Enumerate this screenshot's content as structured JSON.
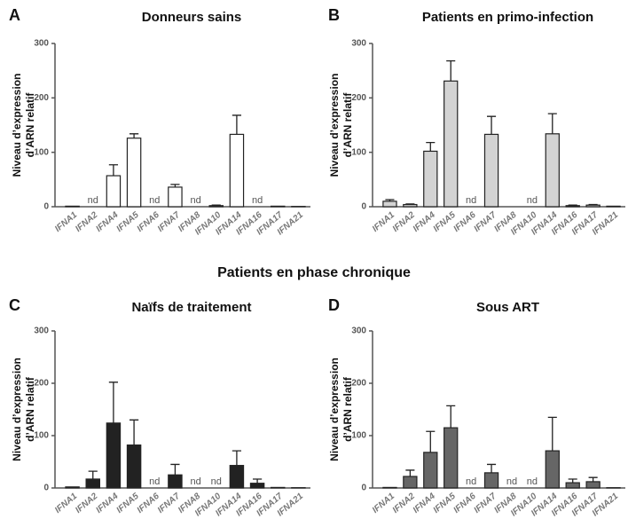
{
  "heading": "Patients en phase chronique",
  "chart_data": [
    {
      "type": "bar",
      "panel": "A",
      "title": "Donneurs sains",
      "ylabel": [
        "Niveau d’expression",
        "d’ARN relatif"
      ],
      "categories": [
        "IFNA1",
        "IFNA2",
        "IFNA4",
        "IFNA5",
        "IFNA6",
        "IFNA7",
        "IFNA8",
        "IFNA10",
        "IFNA14",
        "IFNA16",
        "IFNA17",
        "IFNA21"
      ],
      "values": [
        1,
        null,
        57,
        126,
        null,
        36,
        null,
        2,
        133,
        null,
        1,
        0.5
      ],
      "errors": [
        null,
        null,
        20,
        8,
        null,
        5,
        null,
        1,
        35,
        null,
        null,
        null
      ],
      "value_labels": [
        null,
        "nd",
        null,
        null,
        "nd",
        null,
        "nd",
        null,
        null,
        "nd",
        null,
        null
      ],
      "color": "#ffffff",
      "ylim": [
        0,
        300
      ],
      "yticks": [
        0,
        100,
        200,
        300
      ]
    },
    {
      "type": "bar",
      "panel": "B",
      "title": "Patients en primo-infection",
      "ylabel": [
        "Niveau d’expression",
        "d’ARN relatif"
      ],
      "categories": [
        "IFNA1",
        "IFNA2",
        "IFNA4",
        "IFNA5",
        "IFNA6",
        "IFNA7",
        "IFNA8",
        "IFNA10",
        "IFNA14",
        "IFNA16",
        "IFNA17",
        "IFNA21"
      ],
      "values": [
        10,
        4,
        102,
        231,
        null,
        133,
        0,
        null,
        134,
        2,
        3,
        1
      ],
      "errors": [
        3,
        1,
        16,
        37,
        null,
        33,
        null,
        null,
        37,
        1,
        1,
        null
      ],
      "value_labels": [
        null,
        null,
        null,
        null,
        "nd",
        null,
        null,
        "nd",
        null,
        null,
        null,
        null
      ],
      "color": "#d3d3d3",
      "ylim": [
        0,
        300
      ],
      "yticks": [
        0,
        100,
        200,
        300
      ]
    },
    {
      "type": "bar",
      "panel": "C",
      "title": "Naïfs de traitement",
      "ylabel": [
        "Niveau d’expression",
        "d’ARN relatif"
      ],
      "categories": [
        "IFNA1",
        "IFNA2",
        "IFNA4",
        "IFNA5",
        "IFNA6",
        "IFNA7",
        "IFNA8",
        "IFNA10",
        "IFNA14",
        "IFNA16",
        "IFNA17",
        "IFNA21"
      ],
      "values": [
        2,
        17,
        124,
        82,
        null,
        25,
        null,
        null,
        43,
        9,
        1,
        0.5
      ],
      "errors": [
        null,
        15,
        78,
        48,
        null,
        20,
        null,
        null,
        28,
        8,
        null,
        null
      ],
      "value_labels": [
        null,
        null,
        null,
        null,
        "nd",
        null,
        "nd",
        "nd",
        null,
        null,
        null,
        null
      ],
      "color": "#222222",
      "ylim": [
        0,
        300
      ],
      "yticks": [
        0,
        100,
        200,
        300
      ]
    },
    {
      "type": "bar",
      "panel": "D",
      "title": "Sous ART",
      "ylabel": [
        "Niveau d’expression",
        "d’ARN relatif"
      ],
      "categories": [
        "IFNA1",
        "IFNA2",
        "IFNA4",
        "IFNA5",
        "IFNA6",
        "IFNA7",
        "IFNA8",
        "IFNA10",
        "IFNA14",
        "IFNA16",
        "IFNA17",
        "IFNA21"
      ],
      "values": [
        1,
        22,
        68,
        115,
        null,
        29,
        null,
        null,
        71,
        10,
        12,
        0.5
      ],
      "errors": [
        null,
        12,
        40,
        42,
        null,
        16,
        null,
        null,
        64,
        7,
        8,
        null
      ],
      "value_labels": [
        null,
        null,
        null,
        null,
        "nd",
        null,
        "nd",
        "nd",
        null,
        null,
        null,
        null
      ],
      "color": "#666666",
      "ylim": [
        0,
        300
      ],
      "yticks": [
        0,
        100,
        200,
        300
      ]
    }
  ]
}
